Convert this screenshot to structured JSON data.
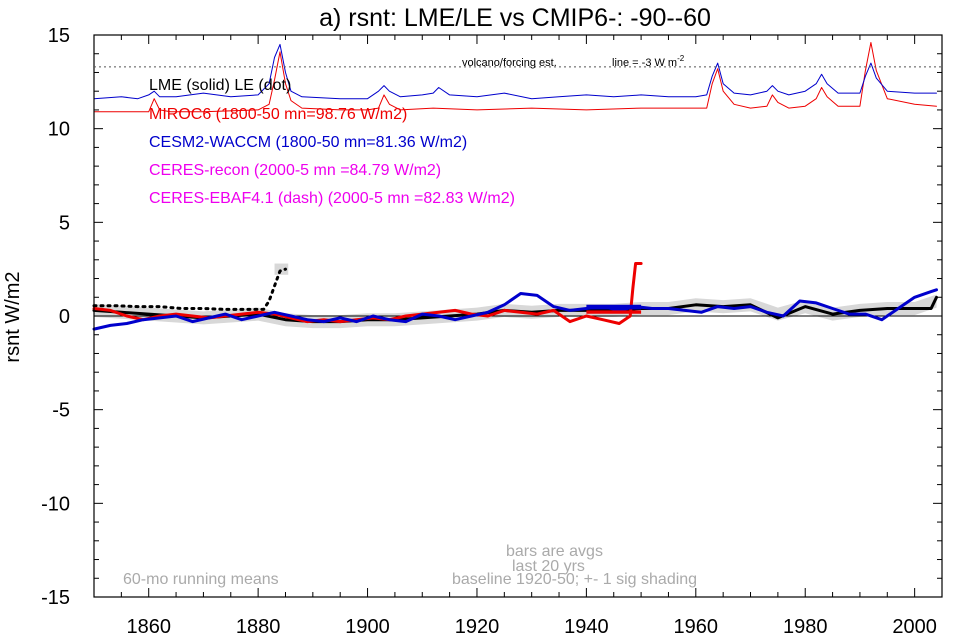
{
  "chart_data": {
    "type": "line",
    "title": "a) rsnt: LME/LE vs CMIP6-: -90--60",
    "ylabel": "rsnt W/m2",
    "xlim": [
      1850,
      2005
    ],
    "ylim": [
      -15,
      15
    ],
    "x_ticks": [
      1860,
      1880,
      1900,
      1920,
      1940,
      1960,
      1980,
      2000
    ],
    "y_ticks": [
      15,
      10,
      5,
      0,
      -5,
      -10,
      -15
    ],
    "y_tick_labels": [
      "15",
      "10",
      "5",
      "0",
      "-5",
      "-10",
      "-15"
    ],
    "legend": [
      {
        "text": "LME (solid)   LE (dot)",
        "color": "#000000"
      },
      {
        "text": "MIROC6 (1800-50 mn=98.76 W/m2)",
        "color": "#ee0000"
      },
      {
        "text": "CESM2-WACCM (1800-50 mn=81.36 W/m2)",
        "color": "#0000cc"
      },
      {
        "text": "CERES-recon (2000-5 mn =84.79 W/m2)",
        "color": "#ee00ee"
      },
      {
        "text": "CERES-EBAF4.1 (dash) (2000-5 mn =82.83 W/m2)",
        "color": "#ee00ee"
      }
    ],
    "forcing_note": "volcano/forcing est.",
    "forcing_line_note": "line = -3 W m",
    "forcing_line_sup": "-2",
    "forcing_ref_y": 13.3,
    "notes": {
      "running_mean": "60-mo running means",
      "bars_line1": "bars are avgs",
      "bars_line2": "last 20 yrs",
      "baseline": "baseline 1920-50; +- 1 sig shading"
    },
    "series": [
      {
        "role": "LME solid",
        "color": "#000000",
        "width": 3,
        "x": [
          1850,
          1855,
          1860,
          1865,
          1870,
          1875,
          1880,
          1885,
          1890,
          1895,
          1900,
          1905,
          1910,
          1915,
          1920,
          1925,
          1930,
          1935,
          1940,
          1945,
          1950,
          1955,
          1960,
          1965,
          1970,
          1975,
          1980,
          1985,
          1990,
          1995,
          2000,
          2003,
          2004
        ],
        "y": [
          0.3,
          0.2,
          0.1,
          0.0,
          -0.1,
          0.0,
          0.1,
          -0.2,
          -0.3,
          -0.3,
          -0.2,
          -0.2,
          -0.1,
          0.0,
          0.1,
          0.3,
          0.2,
          0.3,
          0.3,
          0.3,
          0.4,
          0.4,
          0.6,
          0.5,
          0.6,
          -0.1,
          0.5,
          0.1,
          0.3,
          0.4,
          0.4,
          0.4,
          1.0
        ]
      },
      {
        "role": "LE dot",
        "color": "#000000",
        "width": 3,
        "dash": "2,5",
        "x": [
          1850,
          1854,
          1858,
          1862,
          1866,
          1870,
          1874,
          1878,
          1881,
          1882,
          1883,
          1884,
          1885
        ],
        "y": [
          0.55,
          0.55,
          0.5,
          0.5,
          0.4,
          0.4,
          0.35,
          0.35,
          0.35,
          0.8,
          1.6,
          2.4,
          2.5
        ]
      },
      {
        "role": "MIROC6 anomaly",
        "color": "#ee0000",
        "width": 3,
        "x": [
          1850,
          1853,
          1856,
          1859,
          1862,
          1865,
          1868,
          1871,
          1874,
          1877,
          1880,
          1883,
          1886,
          1889,
          1892,
          1895,
          1898,
          1901,
          1904,
          1907,
          1910,
          1913,
          1916,
          1919,
          1922,
          1925,
          1928,
          1931,
          1934,
          1937,
          1940,
          1943,
          1946,
          1948,
          1948.5,
          1949,
          1950
        ],
        "y": [
          0.4,
          0.3,
          0.0,
          -0.2,
          0.0,
          0.1,
          0.0,
          -0.1,
          0.0,
          0.1,
          0.2,
          0.1,
          -0.1,
          -0.3,
          -0.2,
          -0.3,
          -0.2,
          -0.1,
          -0.2,
          0.0,
          0.1,
          0.2,
          0.3,
          0.1,
          0.0,
          0.3,
          0.2,
          0.1,
          0.3,
          -0.3,
          0.0,
          -0.2,
          -0.4,
          0.0,
          1.5,
          2.8,
          2.8
        ]
      },
      {
        "role": "CESM2-WACCM anomaly",
        "color": "#0000cc",
        "width": 3,
        "x": [
          1850,
          1853,
          1856,
          1859,
          1862,
          1865,
          1868,
          1871,
          1874,
          1877,
          1880,
          1883,
          1886,
          1889,
          1892,
          1895,
          1898,
          1901,
          1904,
          1907,
          1910,
          1913,
          1916,
          1919,
          1922,
          1925,
          1928,
          1931,
          1934,
          1937,
          1940,
          1943,
          1946,
          1949,
          1952,
          1955,
          1958,
          1961,
          1964,
          1967,
          1970,
          1973,
          1976,
          1979,
          1982,
          1985,
          1988,
          1991,
          1994,
          1997,
          2000,
          2003,
          2004
        ],
        "y": [
          -0.7,
          -0.5,
          -0.4,
          -0.2,
          -0.1,
          0.0,
          -0.3,
          -0.1,
          0.1,
          -0.2,
          0.0,
          0.2,
          0.0,
          -0.2,
          -0.3,
          -0.1,
          -0.3,
          0.0,
          -0.2,
          -0.3,
          0.1,
          0.0,
          -0.2,
          0.0,
          0.2,
          0.6,
          1.2,
          1.1,
          0.5,
          0.3,
          0.4,
          0.5,
          0.3,
          0.5,
          0.4,
          0.4,
          0.3,
          0.2,
          0.5,
          0.4,
          0.5,
          0.2,
          0.0,
          0.8,
          0.7,
          0.4,
          0.1,
          0.1,
          -0.2,
          0.4,
          1.0,
          1.3,
          1.4
        ]
      },
      {
        "role": "MIROC6 forcing",
        "color": "#ee0000",
        "width": 1,
        "x": [
          1850,
          1858,
          1860,
          1861,
          1862,
          1864,
          1870,
          1880,
          1882,
          1883,
          1884,
          1885,
          1886,
          1888,
          1895,
          1900,
          1902,
          1903,
          1904,
          1906,
          1912,
          1920,
          1930,
          1940,
          1950,
          1955,
          1960,
          1962,
          1963,
          1964,
          1965,
          1967,
          1970,
          1973,
          1974,
          1975,
          1977,
          1980,
          1982,
          1983,
          1984,
          1986,
          1990,
          1991,
          1992,
          1993,
          1995,
          2000,
          2004
        ],
        "y": [
          10.9,
          10.9,
          10.9,
          11.6,
          11.0,
          10.9,
          10.9,
          11.0,
          11.3,
          12.6,
          14.1,
          12.4,
          11.5,
          11.1,
          11.0,
          11.0,
          11.1,
          11.8,
          11.3,
          11.0,
          11.1,
          11.0,
          11.1,
          11.0,
          11.1,
          11.1,
          11.1,
          11.1,
          12.4,
          13.2,
          12.0,
          11.3,
          11.1,
          11.2,
          11.8,
          11.4,
          11.1,
          11.2,
          11.6,
          12.2,
          11.7,
          11.2,
          11.2,
          13.1,
          14.6,
          13.1,
          11.6,
          11.3,
          11.2
        ]
      },
      {
        "role": "CESM2-WACCM forcing",
        "color": "#0000cc",
        "width": 1,
        "x": [
          1850,
          1855,
          1858,
          1860,
          1861,
          1862,
          1865,
          1870,
          1875,
          1880,
          1882,
          1883,
          1884,
          1885,
          1886,
          1888,
          1895,
          1900,
          1902,
          1903,
          1904,
          1906,
          1910,
          1912,
          1913,
          1915,
          1920,
          1925,
          1930,
          1935,
          1940,
          1945,
          1950,
          1955,
          1960,
          1962,
          1963,
          1964,
          1965,
          1967,
          1970,
          1973,
          1974,
          1975,
          1977,
          1980,
          1982,
          1983,
          1984,
          1986,
          1990,
          1991,
          1992,
          1993,
          1995,
          2000,
          2004
        ],
        "y": [
          11.6,
          11.7,
          11.6,
          11.8,
          12.0,
          11.7,
          11.7,
          11.9,
          11.7,
          11.8,
          12.4,
          13.8,
          14.5,
          13.0,
          12.0,
          11.7,
          11.6,
          11.6,
          12.0,
          12.3,
          12.0,
          11.7,
          11.8,
          11.9,
          12.2,
          11.8,
          11.7,
          11.9,
          11.6,
          11.7,
          11.8,
          11.7,
          11.8,
          11.7,
          11.7,
          11.8,
          12.8,
          13.5,
          12.4,
          11.9,
          11.8,
          12.0,
          12.3,
          12.0,
          11.8,
          12.0,
          12.4,
          12.9,
          12.4,
          11.9,
          11.9,
          12.8,
          13.5,
          12.7,
          12.0,
          11.9,
          11.9
        ]
      }
    ],
    "shading": {
      "color": "#d8d8d8",
      "band_x": [
        1850,
        1855,
        1860,
        1865,
        1870,
        1875,
        1880,
        1885,
        1890,
        1895,
        1900,
        1905,
        1910,
        1915,
        1920,
        1925,
        1930,
        1935,
        1940,
        1945,
        1950,
        1955,
        1960,
        1965,
        1970,
        1975,
        1980,
        1985,
        1990,
        1995,
        2000,
        2004
      ],
      "band_y": [
        0.3,
        0.2,
        0.1,
        0.0,
        -0.1,
        0.0,
        0.1,
        -0.2,
        -0.3,
        -0.3,
        -0.2,
        -0.2,
        -0.1,
        0.0,
        0.1,
        0.3,
        0.2,
        0.3,
        0.3,
        0.3,
        0.4,
        0.4,
        0.6,
        0.5,
        0.6,
        0.1,
        0.5,
        0.1,
        0.3,
        0.4,
        0.4,
        0.8
      ],
      "band_sigma": 0.35,
      "le_box": {
        "x0": 1883,
        "x1": 1885.5,
        "y0": 2.2,
        "y1": 2.8
      }
    },
    "bars": [
      {
        "role": "MIROC6 last 20 yrs",
        "color": "#ee0000",
        "x0": 1940,
        "x1": 1950,
        "y0": 0.12,
        "y1": 0.3
      },
      {
        "role": "CESM2-WACCM last 20 yrs",
        "color": "#0000cc",
        "x0": 1940,
        "x1": 1950,
        "y0": 0.35,
        "y1": 0.6
      }
    ]
  }
}
